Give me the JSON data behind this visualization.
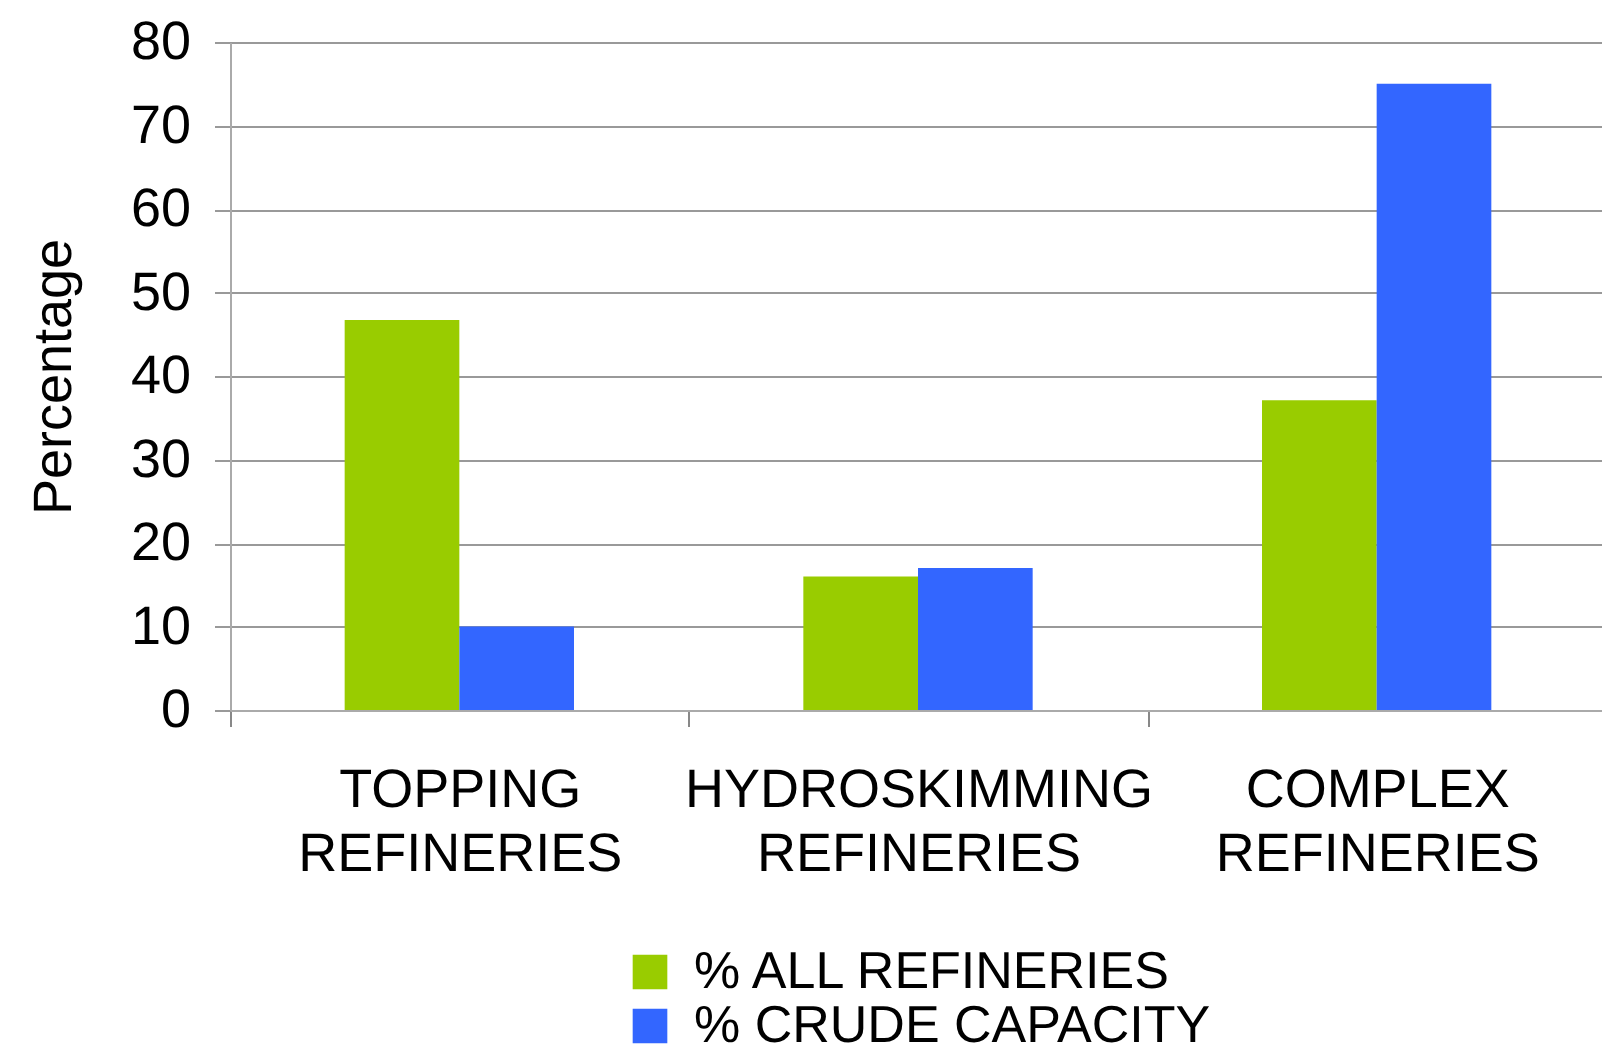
{
  "chart_data": {
    "type": "bar",
    "ylabel": "Percentage",
    "categories": [
      "TOPPING REFINERIES",
      "HYDROSKIMMING REFINERIES",
      "COMPLEX REFINERIES"
    ],
    "series": [
      {
        "name": "% ALL REFINERIES",
        "color": "#99cc00",
        "values": [
          46.7,
          16,
          37.1
        ]
      },
      {
        "name": "% CRUDE CAPACITY",
        "color": "#3366ff",
        "values": [
          10,
          17,
          75
        ]
      }
    ],
    "ylim": [
      0,
      80
    ],
    "yticks": [
      0,
      10,
      20,
      30,
      40,
      50,
      60,
      70,
      80
    ],
    "grid": "y",
    "legend": "bottom"
  }
}
